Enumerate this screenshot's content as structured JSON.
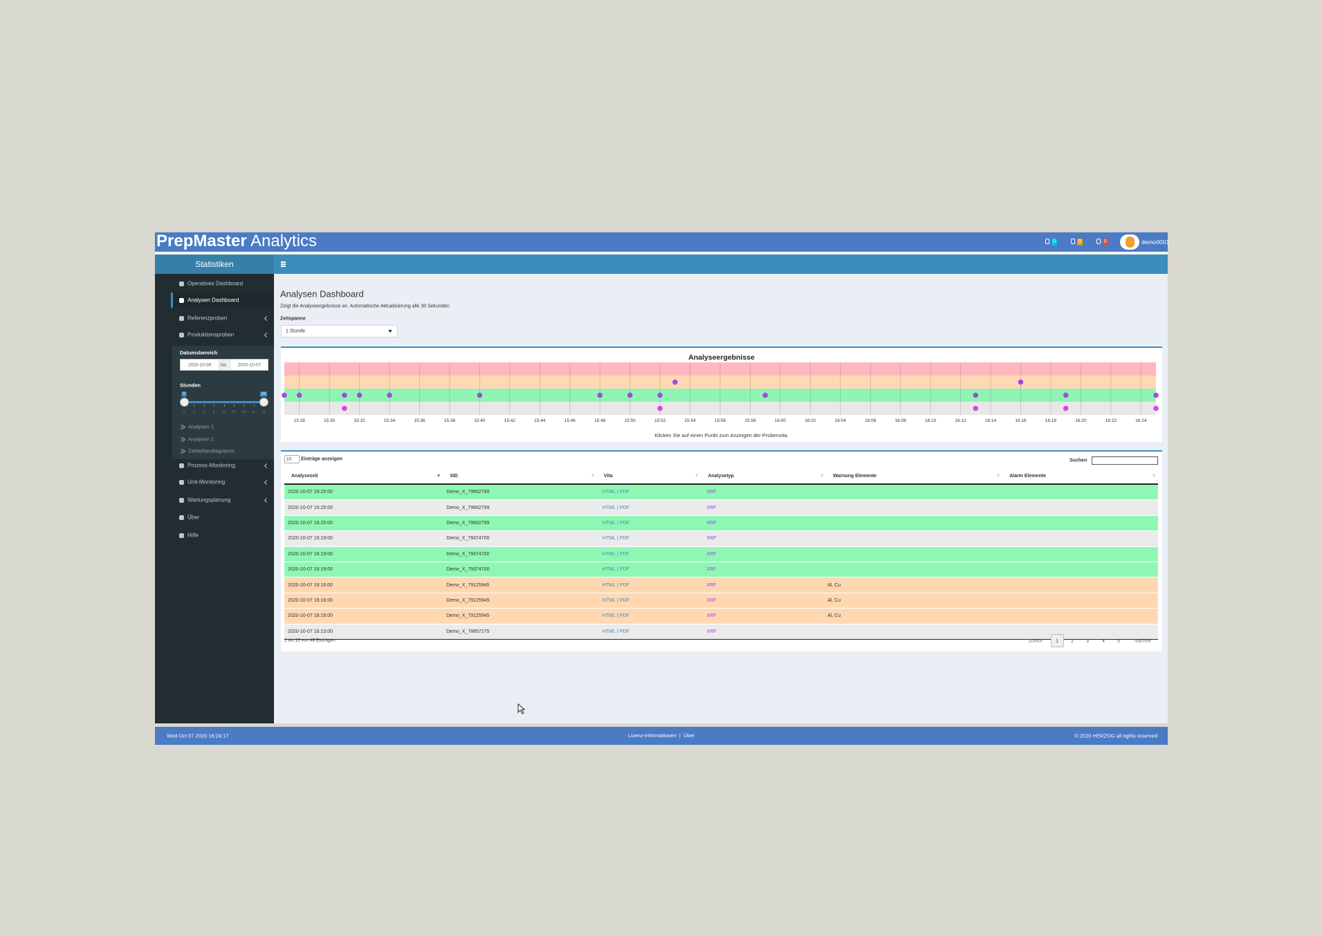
{
  "header": {
    "brand": "PrepMaster",
    "brand_suffix": "Analytics",
    "notifications": [
      0,
      0,
      0
    ],
    "user": "demo0001"
  },
  "sidebar": {
    "title": "Statistiken",
    "menu": [
      {
        "label": "Operatives Dashboard",
        "expandable": false,
        "active": false
      },
      {
        "label": "Analysen Dashboard",
        "expandable": false,
        "active": true
      },
      {
        "label": "Referenzproben",
        "expandable": true,
        "active": false
      },
      {
        "label": "Produktionsproben",
        "expandable": true,
        "active": false
      }
    ],
    "date_range": {
      "label": "Datumsbereich",
      "from": "2020-10-06",
      "separator": "bis",
      "to": "2020-10-07"
    },
    "hours": {
      "label": "Stunden",
      "min": 0,
      "max": 24,
      "from": 0,
      "to": 24,
      "ticks": [
        0,
        3,
        6,
        9,
        12,
        15,
        18,
        21,
        24
      ]
    },
    "submenu": [
      "Analysen 1",
      "Analysen 2",
      "Zeitreihendiagramm"
    ],
    "menu_bottom": [
      {
        "label": "Prozess-Monitoring",
        "expandable": true
      },
      {
        "label": "Unit-Monitoring",
        "expandable": true
      },
      {
        "label": "Wartungsplanung",
        "expandable": true
      },
      {
        "label": "Über",
        "expandable": false
      },
      {
        "label": "Hilfe",
        "expandable": false
      }
    ]
  },
  "page": {
    "title": "Analysen Dashboard",
    "subtitle": "Zeigt die Analyseergebnisse an. Automatische Aktualisierung alle 30 Sekunden.",
    "timespan_label": "Zeitspanne",
    "timespan_value": "1 Stunde"
  },
  "chart": {
    "type": "strip",
    "title": "Analyseergebnisse",
    "note": "Klicken Sie auf einen Punkt zum Anzeigen der Probenvita.",
    "xlim": [
      927,
      985
    ],
    "xticks": [
      {
        "value": 928,
        "label": "15:28"
      },
      {
        "value": 930,
        "label": "15:30"
      },
      {
        "value": 932,
        "label": "15:32"
      },
      {
        "value": 934,
        "label": "15:34"
      },
      {
        "value": 936,
        "label": "15:36"
      },
      {
        "value": 938,
        "label": "15:38"
      },
      {
        "value": 940,
        "label": "15:40"
      },
      {
        "value": 942,
        "label": "15:42"
      },
      {
        "value": 944,
        "label": "15:44"
      },
      {
        "value": 946,
        "label": "15:46"
      },
      {
        "value": 948,
        "label": "15:48"
      },
      {
        "value": 950,
        "label": "15:50"
      },
      {
        "value": 952,
        "label": "15:52"
      },
      {
        "value": 954,
        "label": "15:54"
      },
      {
        "value": 956,
        "label": "15:56"
      },
      {
        "value": 958,
        "label": "15:58"
      },
      {
        "value": 960,
        "label": "16:00"
      },
      {
        "value": 962,
        "label": "16:02"
      },
      {
        "value": 964,
        "label": "16:04"
      },
      {
        "value": 966,
        "label": "16:06"
      },
      {
        "value": 968,
        "label": "16:08"
      },
      {
        "value": 970,
        "label": "16:10"
      },
      {
        "value": 972,
        "label": "16:12"
      },
      {
        "value": 974,
        "label": "16:14"
      },
      {
        "value": 976,
        "label": "16:16"
      },
      {
        "value": 978,
        "label": "16:18"
      },
      {
        "value": 980,
        "label": "16:20"
      },
      {
        "value": 982,
        "label": "16:22"
      },
      {
        "value": 984,
        "label": "16:24"
      }
    ],
    "bands": [
      "#ffb8bd",
      "#ffd9b5",
      "#8ff5b5",
      "#e8e8e8"
    ],
    "point_colors": [
      "#b040e0",
      "#a845e8",
      "#a845e8",
      "#e040e8"
    ],
    "points": [
      {
        "x": 927,
        "band": 2
      },
      {
        "x": 928,
        "band": 2
      },
      {
        "x": 931,
        "band": 2
      },
      {
        "x": 931,
        "band": 3
      },
      {
        "x": 932,
        "band": 2
      },
      {
        "x": 934,
        "band": 2
      },
      {
        "x": 940,
        "band": 2
      },
      {
        "x": 948,
        "band": 2
      },
      {
        "x": 950,
        "band": 2
      },
      {
        "x": 952,
        "band": 2
      },
      {
        "x": 952,
        "band": 3
      },
      {
        "x": 953,
        "band": 1
      },
      {
        "x": 959,
        "band": 2
      },
      {
        "x": 973,
        "band": 2
      },
      {
        "x": 973,
        "band": 3
      },
      {
        "x": 976,
        "band": 1
      },
      {
        "x": 979,
        "band": 2
      },
      {
        "x": 979,
        "band": 3
      },
      {
        "x": 985,
        "band": 2
      },
      {
        "x": 985,
        "band": 3
      }
    ]
  },
  "table": {
    "length_value": 10,
    "length_label": "Einträge anzeigen",
    "search_label": "Suchen",
    "columns": [
      "Analysezeit",
      "SID",
      "Vita",
      "Analysetyp",
      "Warnung Elemente",
      "Alarm Elemente"
    ],
    "vita_separator": "|",
    "rows": [
      {
        "color": "#8ff7b4",
        "time": "2020-10-07 16:25:00",
        "sid": "Demo_X_79662799",
        "vita": [
          "HTML",
          "PDF"
        ],
        "type": "XRF",
        "warning": null,
        "alarm": null
      },
      {
        "color": "#ebebeb",
        "time": "2020-10-07 16:25:00",
        "sid": "Demo_X_79662799",
        "vita": [
          "HTML",
          "PDF"
        ],
        "type": "XRF",
        "warning": null,
        "alarm": null
      },
      {
        "color": "#8ff7b4",
        "time": "2020-10-07 16:25:00",
        "sid": "Demo_X_79662799",
        "vita": [
          "HTML",
          "PDF"
        ],
        "type": "XRF",
        "warning": null,
        "alarm": null
      },
      {
        "color": "#ebebeb",
        "time": "2020-10-07 16:19:00",
        "sid": "Demo_X_79374700",
        "vita": [
          "HTML",
          "PDF"
        ],
        "type": "XRF",
        "warning": null,
        "alarm": null
      },
      {
        "color": "#8ff7b4",
        "time": "2020-10-07 16:19:00",
        "sid": "Demo_X_79374700",
        "vita": [
          "HTML",
          "PDF"
        ],
        "type": "XRF",
        "warning": null,
        "alarm": null
      },
      {
        "color": "#8ff7b4",
        "time": "2020-10-07 16:19:00",
        "sid": "Demo_X_79374700",
        "vita": [
          "HTML",
          "PDF"
        ],
        "type": "XRF",
        "warning": null,
        "alarm": null
      },
      {
        "color": "#ffd8b2",
        "time": "2020-10-07 16:16:00",
        "sid": "Demo_X_79125945",
        "vita": [
          "HTML",
          "PDF"
        ],
        "type": "XRF",
        "warning": "Al, Cu",
        "alarm": null
      },
      {
        "color": "#ffd8b2",
        "time": "2020-10-07 16:16:00",
        "sid": "Demo_X_79125945",
        "vita": [
          "HTML",
          "PDF"
        ],
        "type": "XRF",
        "warning": "Al, Cu",
        "alarm": null
      },
      {
        "color": "#ffd8b2",
        "time": "2020-10-07 16:16:00",
        "sid": "Demo_X_79125945",
        "vita": [
          "HTML",
          "PDF"
        ],
        "type": "XRF",
        "warning": "Al, Cu",
        "alarm": null
      },
      {
        "color": "#ebebeb",
        "time": "2020-10-07 16:13:00",
        "sid": "Demo_X_78857275",
        "vita": [
          "HTML",
          "PDF"
        ],
        "type": "XRF",
        "warning": null,
        "alarm": null
      }
    ],
    "info": "1 bis 10 von 48 Einträgen",
    "pagination": {
      "previous": "Zurück",
      "pages": [
        1,
        2,
        3,
        4,
        5
      ],
      "current": 1,
      "next": "Nächste"
    }
  },
  "footer": {
    "datetime": "Wed Oct 07 2020 16:24:17",
    "links": [
      "Lizenz-Informationen",
      "Über"
    ],
    "separator": "|",
    "copyright": "© 2020 HERZOG all rights reserved"
  }
}
